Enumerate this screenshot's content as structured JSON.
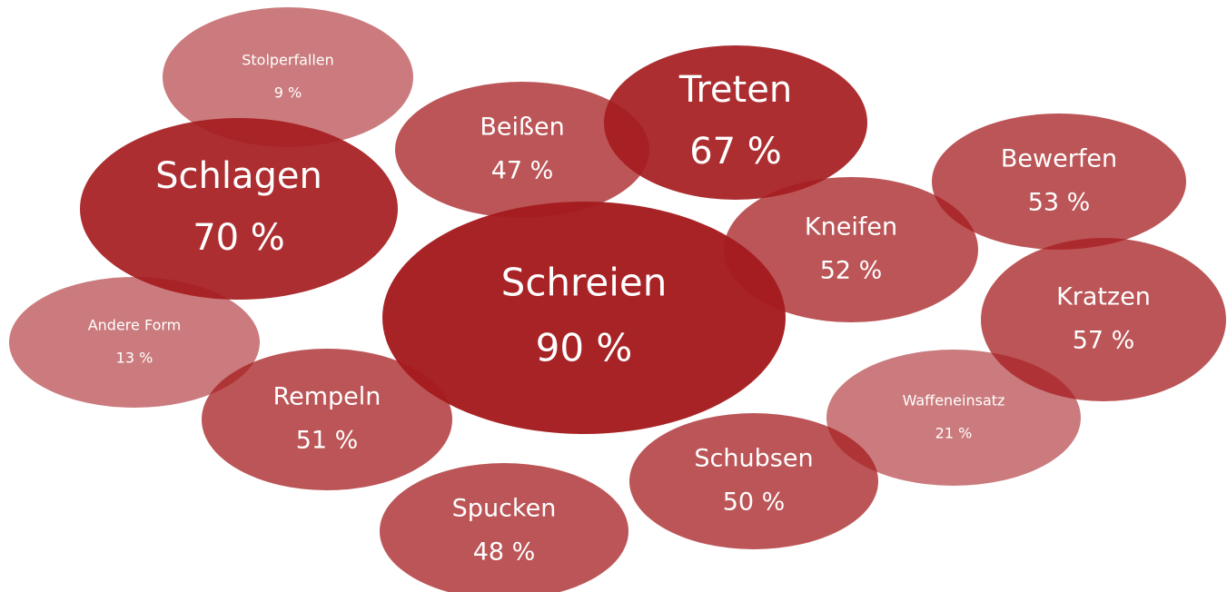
{
  "chart_data": {
    "type": "bubble",
    "categories": [
      "Stolperfallen",
      "Schlagen",
      "Beißen",
      "Treten",
      "Bewerfen",
      "Kneifen",
      "Schreien",
      "Kratzen",
      "Andere Form",
      "Rempeln",
      "Waffeneinsatz",
      "Schubsen",
      "Spucken"
    ],
    "values": [
      9,
      70,
      47,
      67,
      53,
      52,
      90,
      57,
      13,
      51,
      21,
      50,
      48
    ],
    "value_labels": [
      "9 %",
      "70 %",
      "47 %",
      "67 %",
      "53 %",
      "52 %",
      "90 %",
      "57 %",
      "13 %",
      "51 %",
      "21 %",
      "50 %",
      "48 %"
    ],
    "color": "#a51c1f"
  }
}
